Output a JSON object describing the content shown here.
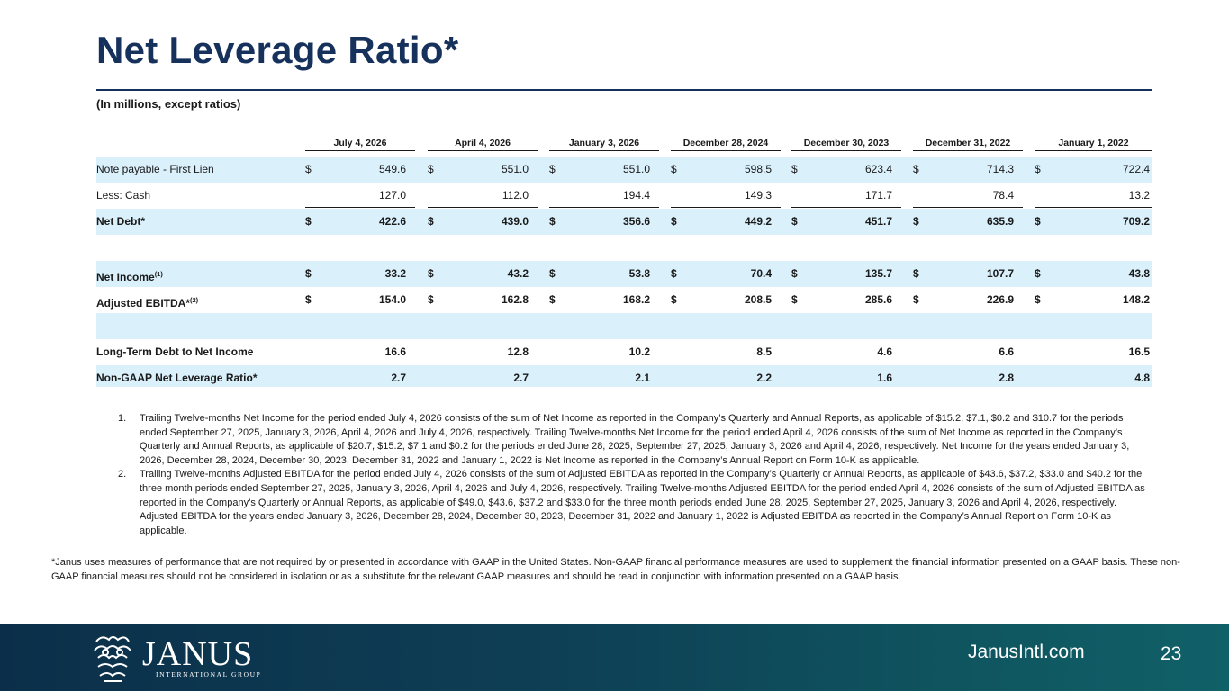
{
  "title": "Net Leverage Ratio*",
  "subtitle": "(In millions, except ratios)",
  "columns": [
    "July 4, 2026",
    "April 4, 2026",
    "January 3, 2026",
    "December 28, 2024",
    "December 30, 2023",
    "December 31, 2022",
    "January 1, 2022"
  ],
  "rows": {
    "note_payable": {
      "label": "Note payable - First Lien",
      "dollar": "$",
      "values": [
        "549.6",
        "551.0",
        "551.0",
        "598.5",
        "623.4",
        "714.3",
        "722.4"
      ]
    },
    "less_cash": {
      "label": "Less: Cash",
      "values": [
        "127.0",
        "112.0",
        "194.4",
        "149.3",
        "171.7",
        "78.4",
        "13.2"
      ]
    },
    "net_debt": {
      "label": "Net Debt*",
      "dollar": "$",
      "values": [
        "422.6",
        "439.0",
        "356.6",
        "449.2",
        "451.7",
        "635.9",
        "709.2"
      ]
    },
    "net_income": {
      "label": "Net Income",
      "sup": "(1)",
      "dollar": "$",
      "values": [
        "33.2",
        "43.2",
        "53.8",
        "70.4",
        "135.7",
        "107.7",
        "43.8"
      ]
    },
    "adj_ebitda": {
      "label": "Adjusted EBITDA*",
      "sup": "(2)",
      "dollar": "$",
      "values": [
        "154.0",
        "162.8",
        "168.2",
        "208.5",
        "285.6",
        "226.9",
        "148.2"
      ]
    },
    "ltd_ni": {
      "label": "Long-Term Debt to Net Income",
      "values": [
        "16.6",
        "12.8",
        "10.2",
        "8.5",
        "4.6",
        "6.6",
        "16.5"
      ]
    },
    "leverage": {
      "label": "Non-GAAP Net Leverage Ratio*",
      "values": [
        "2.7",
        "2.7",
        "2.1",
        "2.2",
        "1.6",
        "2.8",
        "4.8"
      ]
    }
  },
  "footnotes": [
    {
      "num": "1.",
      "text": "Trailing Twelve-months Net Income for the period ended July 4, 2026 consists of the sum of Net Income as reported in the Company’s Quarterly and Annual Reports, as applicable of $15.2, $7.1, $0.2 and $10.7 for the periods ended September 27, 2025, January 3, 2026, April 4, 2026 and July 4, 2026, respectively. Trailing Twelve-months Net Income for the period ended April 4, 2026 consists of the sum of Net Income as reported in the Company’s Quarterly and Annual Reports, as applicable of $20.7, $15.2, $7.1 and $0.2 for the periods ended June 28, 2025, September 27, 2025, January 3, 2026 and April 4, 2026, respectively. Net Income for the years ended January 3, 2026, December 28, 2024, December 30, 2023, December 31, 2022 and January 1, 2022  is Net Income as reported in the Company’s Annual Report on Form 10-K as applicable."
    },
    {
      "num": "2.",
      "text": "Trailing Twelve-months Adjusted EBITDA for the period ended July 4, 2026 consists of the sum of Adjusted EBITDA as reported in the Company’s Quarterly or Annual Reports, as applicable of $43.6, $37.2, $33.0 and $40.2 for the three month periods ended September 27, 2025, January 3, 2026, April 4, 2026 and July 4, 2026, respectively. Trailing Twelve-months Adjusted EBITDA for the period ended April 4, 2026 consists of the sum of Adjusted EBITDA as reported in the Company’s Quarterly or Annual Reports, as applicable of $49.0, $43.6, $37.2 and $33.0 for the three month periods ended June 28, 2025, September 27, 2025, January 3, 2026 and April 4, 2026, respectively. Adjusted EBITDA for the years ended January 3, 2026, December 28, 2024, December 30, 2023, December 31, 2022 and January 1, 2022 is Adjusted EBITDA as reported in the Company’s Annual Report on Form 10-K as applicable."
    }
  ],
  "disclaimer": "*Janus uses measures of performance that are not required by or presented in accordance with GAAP in the United States. Non-GAAP financial performance measures are used to supplement the financial information presented on a GAAP basis. These non-GAAP financial measures should not be considered in isolation or as a substitute for the relevant GAAP measures and should be read in conjunction with information presented on a GAAP basis.",
  "footer": {
    "logo_word": "JANUS",
    "logo_sub": "INTERNATIONAL GROUP",
    "website": "JanusIntl.com",
    "page_number": "23"
  },
  "colors": {
    "title": "#16325c",
    "shade": "#daf0fb",
    "footer": "#0e3f55"
  }
}
